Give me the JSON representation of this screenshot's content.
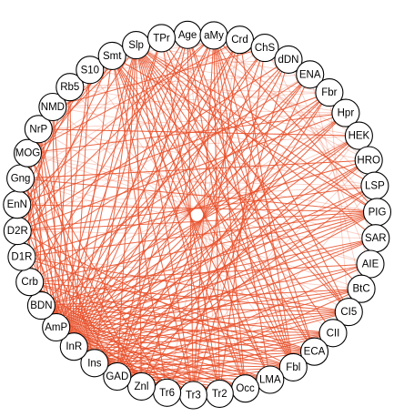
{
  "graph": {
    "nodes": [
      "Age",
      "aMy",
      "Crd",
      "ChS",
      "dDN",
      "ENA",
      "Fbr",
      "Hpr",
      "HEK",
      "HRO",
      "LSP",
      "PIG",
      "SAR",
      "AIE",
      "BtC",
      "CI5",
      "CII",
      "ECA",
      "Fbl",
      "LMA",
      "Occ",
      "Tr2",
      "Tr3",
      "Tr6",
      "Znl",
      "GAD",
      "Ins",
      "InR",
      "AmP",
      "BDN",
      "Crb",
      "D1R",
      "D2R",
      "EnN",
      "Gng",
      "MOG",
      "NrP",
      "NMD",
      "Rb5",
      "S10",
      "Smt",
      "Slp",
      "TPr"
    ],
    "edge_color": "#e8502a",
    "edges_dense": [
      [
        "Slp",
        "Fbl"
      ],
      [
        "Slp",
        "Occ"
      ],
      [
        "Slp",
        "Tr2"
      ],
      [
        "Slp",
        "Tr3"
      ],
      [
        "Slp",
        "LMA"
      ],
      [
        "Slp",
        "ECA"
      ],
      [
        "Slp",
        "CII"
      ],
      [
        "Slp",
        "InR"
      ],
      [
        "Slp",
        "AmP"
      ],
      [
        "Slp",
        "Znl"
      ],
      [
        "Slp",
        "GAD"
      ],
      [
        "Slp",
        "Ins"
      ],
      [
        "Slp",
        "CI5"
      ],
      [
        "Slp",
        "BtC"
      ],
      [
        "Slp",
        "PIG"
      ],
      [
        "Slp",
        "SAR"
      ],
      [
        "Slp",
        "LSP"
      ],
      [
        "Smt",
        "Fbl"
      ],
      [
        "Smt",
        "Occ"
      ],
      [
        "Smt",
        "Tr3"
      ],
      [
        "Smt",
        "LMA"
      ],
      [
        "Smt",
        "ECA"
      ],
      [
        "Smt",
        "CI5"
      ],
      [
        "Smt",
        "InR"
      ],
      [
        "Smt",
        "PIG"
      ],
      [
        "Smt",
        "Tr6"
      ],
      [
        "aMy",
        "Fbl"
      ],
      [
        "aMy",
        "Occ"
      ],
      [
        "aMy",
        "Tr2"
      ],
      [
        "aMy",
        "Tr3"
      ],
      [
        "aMy",
        "LMA"
      ],
      [
        "aMy",
        "GAD"
      ],
      [
        "aMy",
        "InR"
      ],
      [
        "aMy",
        "ECA"
      ],
      [
        "aMy",
        "PIG"
      ],
      [
        "aMy",
        "CI5"
      ],
      [
        "aMy",
        "AmP"
      ],
      [
        "Age",
        "InR"
      ],
      [
        "Age",
        "Fbl"
      ],
      [
        "Age",
        "Tr3"
      ],
      [
        "Age",
        "ECA"
      ],
      [
        "Age",
        "GAD"
      ],
      [
        "Age",
        "Occ"
      ],
      [
        "TPr",
        "Fbl"
      ],
      [
        "TPr",
        "Tr2"
      ],
      [
        "TPr",
        "InR"
      ],
      [
        "TPr",
        "CI5"
      ],
      [
        "TPr",
        "AmP"
      ],
      [
        "Crd",
        "InR"
      ],
      [
        "Crd",
        "AmP"
      ],
      [
        "Crd",
        "Fbl"
      ],
      [
        "Crd",
        "GAD"
      ],
      [
        "Crd",
        "Tr3"
      ],
      [
        "ChS",
        "InR"
      ],
      [
        "ChS",
        "AmP"
      ],
      [
        "ChS",
        "Tr2"
      ],
      [
        "ChS",
        "Znl"
      ],
      [
        "dDN",
        "InR"
      ],
      [
        "dDN",
        "GAD"
      ],
      [
        "dDN",
        "BDN"
      ],
      [
        "dDN",
        "Tr3"
      ],
      [
        "ENA",
        "InR"
      ],
      [
        "ENA",
        "AmP"
      ],
      [
        "ENA",
        "Ins"
      ],
      [
        "ENA",
        "Tr6"
      ],
      [
        "Fbr",
        "InR"
      ],
      [
        "Fbr",
        "AmP"
      ],
      [
        "Fbr",
        "GAD"
      ],
      [
        "Fbr",
        "Crb"
      ],
      [
        "Fbr",
        "Znl"
      ],
      [
        "Hpr",
        "InR"
      ],
      [
        "Hpr",
        "AmP"
      ],
      [
        "Hpr",
        "Ins"
      ],
      [
        "Hpr",
        "D2R"
      ],
      [
        "HEK",
        "InR"
      ],
      [
        "HEK",
        "AmP"
      ],
      [
        "HEK",
        "BDN"
      ],
      [
        "HEK",
        "GAD"
      ],
      [
        "HRO",
        "InR"
      ],
      [
        "HRO",
        "AmP"
      ],
      [
        "HRO",
        "D1R"
      ],
      [
        "HRO",
        "Ins"
      ],
      [
        "LSP",
        "InR"
      ],
      [
        "LSP",
        "AmP"
      ],
      [
        "LSP",
        "D2R"
      ],
      [
        "LSP",
        "GAD"
      ],
      [
        "PIG",
        "InR"
      ],
      [
        "PIG",
        "AmP"
      ],
      [
        "PIG",
        "D2R"
      ],
      [
        "PIG",
        "D1R"
      ],
      [
        "PIG",
        "BDN"
      ],
      [
        "PIG",
        "Crb"
      ],
      [
        "PIG",
        "EnN"
      ],
      [
        "PIG",
        "Gng"
      ],
      [
        "PIG",
        "Ins"
      ],
      [
        "SAR",
        "InR"
      ],
      [
        "SAR",
        "AmP"
      ],
      [
        "SAR",
        "BDN"
      ],
      [
        "SAR",
        "Ins"
      ],
      [
        "AIE",
        "InR"
      ],
      [
        "AIE",
        "AmP"
      ],
      [
        "AIE",
        "Crb"
      ],
      [
        "AIE",
        "GAD"
      ],
      [
        "BtC",
        "InR"
      ],
      [
        "BtC",
        "AmP"
      ],
      [
        "BtC",
        "BDN"
      ],
      [
        "BtC",
        "Ins"
      ],
      [
        "BtC",
        "Znl"
      ],
      [
        "CI5",
        "InR"
      ],
      [
        "CI5",
        "AmP"
      ],
      [
        "CI5",
        "BDN"
      ],
      [
        "CI5",
        "Crb"
      ],
      [
        "CI5",
        "D1R"
      ],
      [
        "CI5",
        "Ins"
      ],
      [
        "CI5",
        "GAD"
      ],
      [
        "CII",
        "InR"
      ],
      [
        "CII",
        "AmP"
      ],
      [
        "CII",
        "BDN"
      ],
      [
        "CII",
        "Ins"
      ],
      [
        "CII",
        "GAD"
      ],
      [
        "CII",
        "Znl"
      ],
      [
        "ECA",
        "InR"
      ],
      [
        "ECA",
        "AmP"
      ],
      [
        "ECA",
        "BDN"
      ],
      [
        "ECA",
        "Crb"
      ],
      [
        "ECA",
        "Ins"
      ],
      [
        "ECA",
        "GAD"
      ],
      [
        "ECA",
        "D1R"
      ],
      [
        "Fbl",
        "InR"
      ],
      [
        "Fbl",
        "AmP"
      ],
      [
        "Fbl",
        "BDN"
      ],
      [
        "Fbl",
        "Ins"
      ],
      [
        "Fbl",
        "GAD"
      ],
      [
        "Fbl",
        "Znl"
      ],
      [
        "Fbl",
        "D2R"
      ],
      [
        "Fbl",
        "Crb"
      ],
      [
        "LMA",
        "InR"
      ],
      [
        "LMA",
        "AmP"
      ],
      [
        "LMA",
        "BDN"
      ],
      [
        "LMA",
        "Ins"
      ],
      [
        "LMA",
        "GAD"
      ],
      [
        "Occ",
        "InR"
      ],
      [
        "Occ",
        "AmP"
      ],
      [
        "Occ",
        "BDN"
      ],
      [
        "Occ",
        "Ins"
      ],
      [
        "Occ",
        "GAD"
      ],
      [
        "Occ",
        "Znl"
      ],
      [
        "Tr2",
        "InR"
      ],
      [
        "Tr2",
        "AmP"
      ],
      [
        "Tr2",
        "Ins"
      ],
      [
        "Tr2",
        "GAD"
      ],
      [
        "Tr2",
        "BDN"
      ],
      [
        "Tr3",
        "InR"
      ],
      [
        "Tr3",
        "AmP"
      ],
      [
        "Tr3",
        "Ins"
      ],
      [
        "Tr3",
        "GAD"
      ],
      [
        "Tr3",
        "Crb"
      ],
      [
        "Tr6",
        "InR"
      ],
      [
        "Tr6",
        "AmP"
      ],
      [
        "Tr6",
        "BDN"
      ],
      [
        "Tr6",
        "MOG"
      ],
      [
        "Znl",
        "InR"
      ],
      [
        "Znl",
        "AmP"
      ],
      [
        "Znl",
        "MOG"
      ],
      [
        "Znl",
        "Gng"
      ],
      [
        "GAD",
        "InR"
      ],
      [
        "GAD",
        "AmP"
      ],
      [
        "GAD",
        "Gng"
      ],
      [
        "GAD",
        "EnN"
      ],
      [
        "Ins",
        "InR"
      ],
      [
        "Ins",
        "AmP"
      ],
      [
        "Ins",
        "NrP"
      ],
      [
        "InR",
        "AmP"
      ],
      [
        "InR",
        "BDN"
      ],
      [
        "InR",
        "Crb"
      ],
      [
        "InR",
        "D1R"
      ],
      [
        "InR",
        "D2R"
      ],
      [
        "InR",
        "EnN"
      ],
      [
        "InR",
        "Gng"
      ],
      [
        "InR",
        "MOG"
      ],
      [
        "InR",
        "NrP"
      ],
      [
        "InR",
        "NMD"
      ],
      [
        "InR",
        "Rb5"
      ],
      [
        "InR",
        "S10"
      ],
      [
        "AmP",
        "Crb"
      ],
      [
        "AmP",
        "D1R"
      ],
      [
        "AmP",
        "D2R"
      ],
      [
        "AmP",
        "EnN"
      ],
      [
        "AmP",
        "Gng"
      ],
      [
        "AmP",
        "MOG"
      ],
      [
        "AmP",
        "NrP"
      ],
      [
        "AmP",
        "NMD"
      ],
      [
        "AmP",
        "Rb5"
      ],
      [
        "AmP",
        "S10"
      ],
      [
        "BDN",
        "MOG"
      ],
      [
        "BDN",
        "NrP"
      ],
      [
        "Crb",
        "MOG"
      ],
      [
        "D1R",
        "NMD"
      ],
      [
        "D2R",
        "Rb5"
      ],
      [
        "EnN",
        "S10"
      ],
      [
        "Gng",
        "NrP"
      ],
      [
        "MOG",
        "Rb5"
      ],
      [
        "Slp",
        "MOG"
      ],
      [
        "Slp",
        "NrP"
      ],
      [
        "Slp",
        "D2R"
      ],
      [
        "Smt",
        "Gng"
      ],
      [
        "Smt",
        "D1R"
      ],
      [
        "aMy",
        "D2R"
      ],
      [
        "aMy",
        "EnN"
      ],
      [
        "Age",
        "Crb"
      ],
      [
        "Hpr",
        "MOG"
      ],
      [
        "HEK",
        "NrP"
      ],
      [
        "HRO",
        "Gng"
      ],
      [
        "Fbr",
        "EnN"
      ],
      [
        "ENA",
        "D1R"
      ],
      [
        "dDN",
        "D2R"
      ],
      [
        "Crd",
        "MOG"
      ],
      [
        "ChS",
        "NMD"
      ]
    ],
    "edges_faint": [
      [
        "MOG",
        "HEK"
      ],
      [
        "Gng",
        "HRO"
      ],
      [
        "NrP",
        "Hpr"
      ],
      [
        "NMD",
        "Fbr"
      ],
      [
        "Rb5",
        "ENA"
      ],
      [
        "S10",
        "dDN"
      ],
      [
        "EnN",
        "LSP"
      ],
      [
        "D2R",
        "SAR"
      ],
      [
        "MOG",
        "PIG"
      ],
      [
        "Gng",
        "LSP"
      ],
      [
        "NrP",
        "HEK"
      ],
      [
        "NMD",
        "Hpr"
      ],
      [
        "Rb5",
        "Fbr"
      ],
      [
        "S10",
        "ChS"
      ],
      [
        "Smt",
        "Crd"
      ],
      [
        "Slp",
        "HRO"
      ],
      [
        "MOG",
        "SAR"
      ],
      [
        "Gng",
        "AIE"
      ],
      [
        "NrP",
        "LSP"
      ],
      [
        "NMD",
        "HRO"
      ],
      [
        "Rb5",
        "HEK"
      ],
      [
        "S10",
        "Hpr"
      ],
      [
        "Smt",
        "Fbr"
      ],
      [
        "Slp",
        "ENA"
      ],
      [
        "TPr",
        "HEK"
      ],
      [
        "Age",
        "HRO"
      ],
      [
        "aMy",
        "LSP"
      ],
      [
        "Crd",
        "PIG"
      ],
      [
        "ChS",
        "SAR"
      ],
      [
        "dDN",
        "AIE"
      ],
      [
        "ENA",
        "BtC"
      ],
      [
        "Fbr",
        "CI5"
      ],
      [
        "D1R",
        "BtC"
      ],
      [
        "Crb",
        "CI5"
      ],
      [
        "BDN",
        "CII"
      ],
      [
        "D1R",
        "HRO"
      ],
      [
        "Crb",
        "HEK"
      ],
      [
        "BDN",
        "Hpr"
      ],
      [
        "EnN",
        "Fbr"
      ],
      [
        "D2R",
        "ENA"
      ],
      [
        "MOG",
        "AIE"
      ],
      [
        "Gng",
        "BtC"
      ],
      [
        "NrP",
        "CI5"
      ],
      [
        "NMD",
        "CII"
      ],
      [
        "Rb5",
        "ECA"
      ],
      [
        "S10",
        "Fbl"
      ],
      [
        "Smt",
        "LMA"
      ],
      [
        "TPr",
        "Occ"
      ],
      [
        "Age",
        "Tr2"
      ],
      [
        "Crd",
        "Tr6"
      ],
      [
        "ChS",
        "Znl"
      ],
      [
        "dDN",
        "GAD"
      ],
      [
        "Hpr",
        "Ins"
      ],
      [
        "HEK",
        "Tr6"
      ],
      [
        "HRO",
        "Znl"
      ],
      [
        "LSP",
        "Tr3"
      ],
      [
        "Slp",
        "S10"
      ],
      [
        "Smt",
        "Rb5"
      ],
      [
        "TPr",
        "NMD"
      ],
      [
        "Age",
        "NrP"
      ],
      [
        "aMy",
        "MOG"
      ],
      [
        "Crd",
        "Gng"
      ],
      [
        "ChS",
        "EnN"
      ],
      [
        "dDN",
        "D2R"
      ]
    ]
  }
}
